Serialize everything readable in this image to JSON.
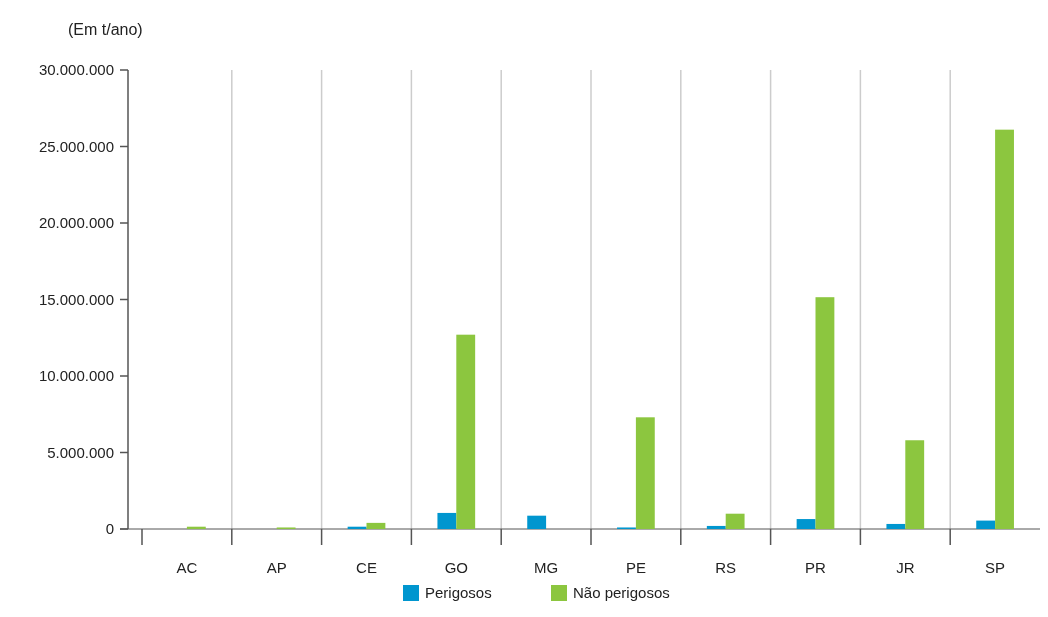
{
  "chart_data": {
    "type": "bar",
    "ylabel": "(Em t/ano)",
    "categories": [
      "AC",
      "AP",
      "CE",
      "GO",
      "MG",
      "PE",
      "RS",
      "PR",
      "JR",
      "SP"
    ],
    "series": [
      {
        "name": "Perigosos",
        "color": "#0096cf",
        "values": [
          null,
          null,
          150000,
          1050000,
          870000,
          100000,
          200000,
          650000,
          330000,
          550000
        ]
      },
      {
        "name": "Não perigosos",
        "color": "#8cc63f",
        "values": [
          150000,
          100000,
          400000,
          12700000,
          0,
          7300000,
          1000000,
          15150000,
          5800000,
          26100000
        ]
      }
    ],
    "ylim": [
      0,
      30000000
    ],
    "yticks": [
      {
        "value": 0,
        "label": "0"
      },
      {
        "value": 5000000,
        "label": "5.000.000"
      },
      {
        "value": 10000000,
        "label": "10.000.000"
      },
      {
        "value": 15000000,
        "label": "15.000.000"
      },
      {
        "value": 20000000,
        "label": "20.000.000"
      },
      {
        "value": 25000000,
        "label": "25.000.000"
      },
      {
        "value": 30000000,
        "label": "30.000.000"
      }
    ],
    "grid": "x",
    "legend": "bottom"
  }
}
